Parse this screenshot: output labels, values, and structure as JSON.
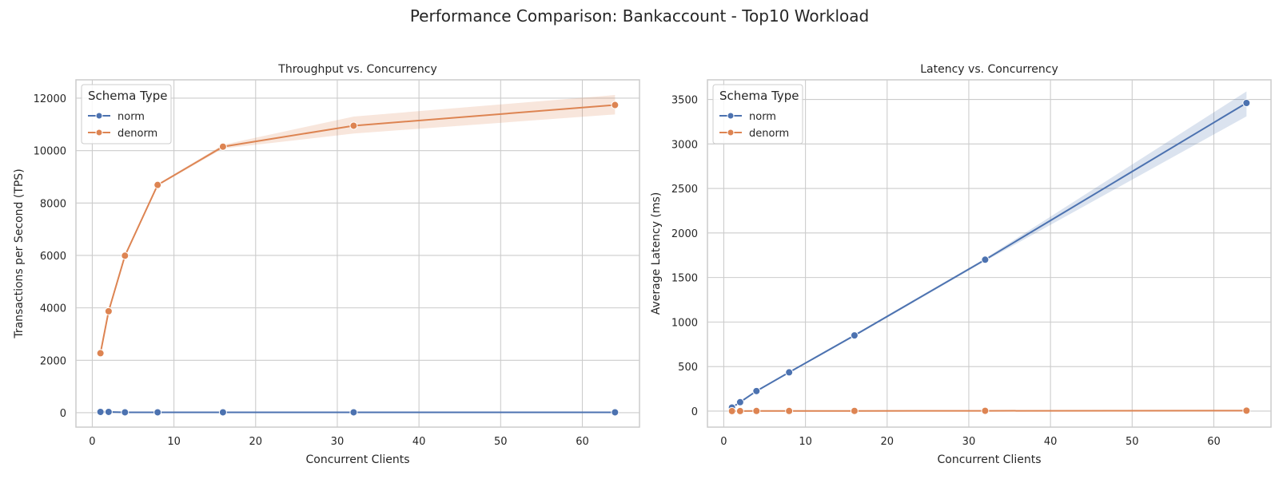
{
  "suptitle": "Performance Comparison: Bankaccount - Top10 Workload",
  "chart_data": [
    {
      "type": "line",
      "title": "Throughput vs. Concurrency",
      "xlabel": "Concurrent Clients",
      "ylabel": "Transactions per Second (TPS)",
      "xlim": [
        -2,
        67
      ],
      "ylim": [
        -550,
        12700
      ],
      "xticks": [
        0,
        10,
        20,
        30,
        40,
        50,
        60
      ],
      "yticks": [
        0,
        2000,
        4000,
        6000,
        8000,
        10000,
        12000
      ],
      "grid": true,
      "legend": {
        "title": "Schema Type",
        "position": "top-left"
      },
      "x": [
        1,
        2,
        4,
        8,
        16,
        32,
        64
      ],
      "series": [
        {
          "name": "norm",
          "color": "#4c72b0",
          "values": [
            30,
            30,
            15,
            15,
            15,
            15,
            15
          ],
          "ci_low": [
            25,
            25,
            10,
            10,
            10,
            10,
            10
          ],
          "ci_high": [
            35,
            35,
            20,
            20,
            20,
            20,
            20
          ]
        },
        {
          "name": "denorm",
          "color": "#dd8452",
          "values": [
            2270,
            3870,
            5990,
            8690,
            10150,
            10950,
            11740
          ],
          "ci_low": [
            2250,
            3850,
            5970,
            8650,
            10080,
            10650,
            11380
          ],
          "ci_high": [
            2290,
            3890,
            6010,
            8730,
            10220,
            11300,
            12120
          ]
        }
      ]
    },
    {
      "type": "line",
      "title": "Latency vs. Concurrency",
      "xlabel": "Concurrent Clients",
      "ylabel": "Average Latency (ms)",
      "xlim": [
        -2,
        67
      ],
      "ylim": [
        -180,
        3720
      ],
      "xticks": [
        0,
        10,
        20,
        30,
        40,
        50,
        60
      ],
      "yticks": [
        0,
        500,
        1000,
        1500,
        2000,
        2500,
        3000,
        3500
      ],
      "grid": true,
      "legend": {
        "title": "Schema Type",
        "position": "top-left"
      },
      "x": [
        1,
        2,
        4,
        8,
        16,
        32,
        64
      ],
      "series": [
        {
          "name": "norm",
          "color": "#4c72b0",
          "values": [
            40,
            100,
            225,
            435,
            850,
            1700,
            3460
          ],
          "ci_low": [
            38,
            97,
            220,
            428,
            838,
            1685,
            3310
          ],
          "ci_high": [
            42,
            103,
            230,
            442,
            862,
            1715,
            3590
          ]
        },
        {
          "name": "denorm",
          "color": "#dd8452",
          "values": [
            0,
            0,
            1,
            1,
            2,
            3,
            5
          ],
          "ci_low": [
            0,
            0,
            0,
            0,
            1,
            2,
            4
          ],
          "ci_high": [
            1,
            1,
            2,
            2,
            3,
            4,
            6
          ]
        }
      ]
    }
  ]
}
